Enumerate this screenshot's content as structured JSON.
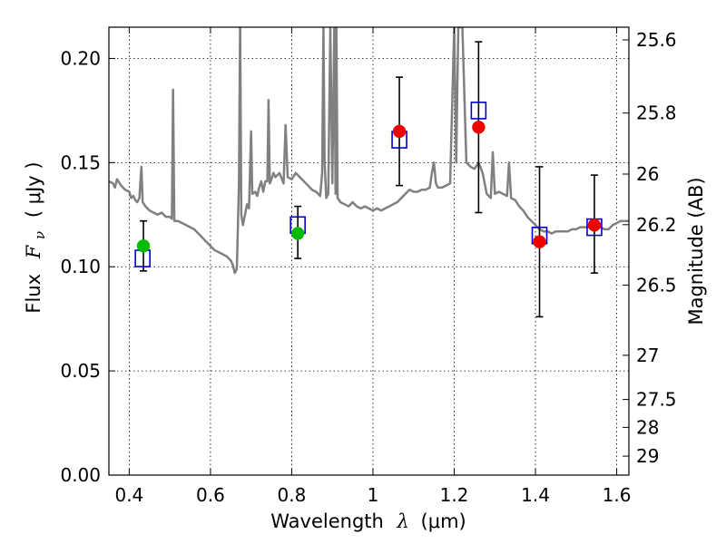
{
  "chart_data": {
    "type": "scatter",
    "xlabel": "Wavelength",
    "xlabel_symbol": "λ",
    "xlabel_unit": "(μm)",
    "ylabel": "Flux",
    "ylabel_symbol": "F",
    "ylabel_symbol_sub": "ν",
    "ylabel_unit": "( μJy )",
    "y2label": "Magnitude (AB)",
    "xlim": [
      0.35,
      1.63
    ],
    "ylim": [
      0.0,
      0.215
    ],
    "grid": true,
    "grid_style": "dotted",
    "x_ticks": [
      0.4,
      0.6,
      0.8,
      1.0,
      1.2,
      1.4,
      1.6
    ],
    "x_tick_labels": [
      "0.4",
      "0.6",
      "0.8",
      "1",
      "1.2",
      "1.4",
      "1.6"
    ],
    "y_ticks": [
      0.0,
      0.05,
      0.1,
      0.15,
      0.2
    ],
    "y_tick_labels": [
      "0.00",
      "0.05",
      "0.10",
      "0.15",
      "0.20"
    ],
    "y2_ticks": [
      {
        "flux": 0.2089,
        "label": "25.6"
      },
      {
        "flux": 0.1738,
        "label": "25.8"
      },
      {
        "flux": 0.1445,
        "label": "26"
      },
      {
        "flux": 0.1202,
        "label": "26.2"
      },
      {
        "flux": 0.0912,
        "label": "26.5"
      },
      {
        "flux": 0.0575,
        "label": "27"
      },
      {
        "flux": 0.0363,
        "label": "27.5"
      },
      {
        "flux": 0.0229,
        "label": "28"
      },
      {
        "flux": 0.0091,
        "label": "29"
      }
    ],
    "series": [
      {
        "kind": "line",
        "color": "#808080",
        "points": [
          [
            0.35,
            0.141
          ],
          [
            0.36,
            0.14
          ],
          [
            0.365,
            0.138
          ],
          [
            0.37,
            0.142
          ],
          [
            0.38,
            0.139
          ],
          [
            0.39,
            0.137
          ],
          [
            0.4,
            0.136
          ],
          [
            0.405,
            0.133
          ],
          [
            0.41,
            0.134
          ],
          [
            0.415,
            0.132
          ],
          [
            0.42,
            0.131
          ],
          [
            0.425,
            0.133
          ],
          [
            0.43,
            0.148
          ],
          [
            0.433,
            0.131
          ],
          [
            0.44,
            0.129
          ],
          [
            0.45,
            0.127
          ],
          [
            0.46,
            0.126
          ],
          [
            0.47,
            0.125
          ],
          [
            0.48,
            0.126
          ],
          [
            0.49,
            0.124
          ],
          [
            0.5,
            0.124
          ],
          [
            0.505,
            0.123
          ],
          [
            0.508,
            0.185
          ],
          [
            0.511,
            0.122
          ],
          [
            0.52,
            0.122
          ],
          [
            0.53,
            0.121
          ],
          [
            0.54,
            0.12
          ],
          [
            0.55,
            0.119
          ],
          [
            0.56,
            0.118
          ],
          [
            0.57,
            0.116
          ],
          [
            0.58,
            0.114
          ],
          [
            0.59,
            0.112
          ],
          [
            0.6,
            0.11
          ],
          [
            0.61,
            0.108
          ],
          [
            0.62,
            0.107
          ],
          [
            0.63,
            0.106
          ],
          [
            0.64,
            0.105
          ],
          [
            0.65,
            0.103
          ],
          [
            0.655,
            0.101
          ],
          [
            0.66,
            0.097
          ],
          [
            0.665,
            0.099
          ],
          [
            0.67,
            0.14
          ],
          [
            0.673,
            0.22
          ],
          [
            0.676,
            0.125
          ],
          [
            0.68,
            0.12
          ],
          [
            0.685,
            0.125
          ],
          [
            0.69,
            0.13
          ],
          [
            0.695,
            0.128
          ],
          [
            0.7,
            0.165
          ],
          [
            0.703,
            0.135
          ],
          [
            0.71,
            0.136
          ],
          [
            0.715,
            0.134
          ],
          [
            0.72,
            0.138
          ],
          [
            0.725,
            0.141
          ],
          [
            0.73,
            0.136
          ],
          [
            0.735,
            0.141
          ],
          [
            0.74,
            0.141
          ],
          [
            0.743,
            0.18
          ],
          [
            0.746,
            0.14
          ],
          [
            0.75,
            0.142
          ],
          [
            0.755,
            0.145
          ],
          [
            0.76,
            0.143
          ],
          [
            0.77,
            0.145
          ],
          [
            0.78,
            0.14
          ],
          [
            0.785,
            0.168
          ],
          [
            0.79,
            0.143
          ],
          [
            0.8,
            0.142
          ],
          [
            0.81,
            0.145
          ],
          [
            0.82,
            0.143
          ],
          [
            0.83,
            0.141
          ],
          [
            0.84,
            0.139
          ],
          [
            0.85,
            0.137
          ],
          [
            0.86,
            0.136
          ],
          [
            0.87,
            0.134
          ],
          [
            0.875,
            0.145
          ],
          [
            0.878,
            0.215
          ],
          [
            0.881,
            0.15
          ],
          [
            0.885,
            0.133
          ],
          [
            0.89,
            0.135
          ],
          [
            0.895,
            0.215
          ],
          [
            0.9,
            0.14
          ],
          [
            0.905,
            0.215
          ],
          [
            0.908,
            0.135
          ],
          [
            0.91,
            0.215
          ],
          [
            0.913,
            0.133
          ],
          [
            0.92,
            0.131
          ],
          [
            0.93,
            0.13
          ],
          [
            0.94,
            0.129
          ],
          [
            0.95,
            0.131
          ],
          [
            0.96,
            0.129
          ],
          [
            0.97,
            0.128
          ],
          [
            0.98,
            0.129
          ],
          [
            0.99,
            0.128
          ],
          [
            1.0,
            0.127
          ],
          [
            1.01,
            0.128
          ],
          [
            1.02,
            0.127
          ],
          [
            1.03,
            0.128
          ],
          [
            1.04,
            0.129
          ],
          [
            1.05,
            0.13
          ],
          [
            1.06,
            0.131
          ],
          [
            1.07,
            0.133
          ],
          [
            1.08,
            0.135
          ],
          [
            1.09,
            0.137
          ],
          [
            1.1,
            0.136
          ],
          [
            1.11,
            0.136
          ],
          [
            1.12,
            0.137
          ],
          [
            1.13,
            0.137
          ],
          [
            1.14,
            0.138
          ],
          [
            1.145,
            0.145
          ],
          [
            1.15,
            0.15
          ],
          [
            1.155,
            0.14
          ],
          [
            1.16,
            0.138
          ],
          [
            1.17,
            0.138
          ],
          [
            1.18,
            0.139
          ],
          [
            1.19,
            0.14
          ],
          [
            1.2,
            0.215
          ],
          [
            1.205,
            0.15
          ],
          [
            1.21,
            0.215
          ],
          [
            1.22,
            0.215
          ],
          [
            1.23,
            0.15
          ],
          [
            1.24,
            0.148
          ],
          [
            1.25,
            0.147
          ],
          [
            1.26,
            0.15
          ],
          [
            1.27,
            0.145
          ],
          [
            1.28,
            0.135
          ],
          [
            1.29,
            0.133
          ],
          [
            1.295,
            0.155
          ],
          [
            1.3,
            0.135
          ],
          [
            1.31,
            0.136
          ],
          [
            1.32,
            0.135
          ],
          [
            1.33,
            0.134
          ],
          [
            1.335,
            0.15
          ],
          [
            1.34,
            0.133
          ],
          [
            1.35,
            0.132
          ],
          [
            1.36,
            0.129
          ],
          [
            1.37,
            0.127
          ],
          [
            1.38,
            0.124
          ],
          [
            1.39,
            0.122
          ],
          [
            1.4,
            0.12
          ],
          [
            1.41,
            0.118
          ],
          [
            1.42,
            0.117
          ],
          [
            1.43,
            0.117
          ],
          [
            1.44,
            0.116
          ],
          [
            1.45,
            0.117
          ],
          [
            1.46,
            0.117
          ],
          [
            1.47,
            0.117
          ],
          [
            1.48,
            0.117
          ],
          [
            1.49,
            0.118
          ],
          [
            1.5,
            0.118
          ],
          [
            1.51,
            0.119
          ],
          [
            1.52,
            0.119
          ],
          [
            1.53,
            0.119
          ],
          [
            1.54,
            0.119
          ],
          [
            1.55,
            0.119
          ],
          [
            1.56,
            0.119
          ],
          [
            1.57,
            0.118
          ],
          [
            1.58,
            0.118
          ],
          [
            1.59,
            0.12
          ],
          [
            1.6,
            0.121
          ],
          [
            1.61,
            0.122
          ],
          [
            1.62,
            0.122
          ],
          [
            1.63,
            0.122
          ]
        ]
      },
      {
        "kind": "squares",
        "color": "#0000cc",
        "points": [
          [
            0.433,
            0.104
          ],
          [
            0.815,
            0.12
          ],
          [
            1.065,
            0.161
          ],
          [
            1.26,
            0.175
          ],
          [
            1.41,
            0.115
          ],
          [
            1.545,
            0.119
          ]
        ]
      },
      {
        "kind": "circles",
        "color": "#00bb00",
        "points": [
          [
            0.435,
            0.11
          ],
          [
            0.815,
            0.116
          ]
        ]
      },
      {
        "kind": "circles",
        "color": "#ee0000",
        "points": [
          [
            1.065,
            0.165
          ],
          [
            1.26,
            0.167
          ],
          [
            1.41,
            0.112
          ],
          [
            1.545,
            0.12
          ]
        ]
      },
      {
        "kind": "errorbars",
        "color": "#000000",
        "points": [
          {
            "x": 0.435,
            "lo": 0.098,
            "hi": 0.122
          },
          {
            "x": 0.815,
            "lo": 0.104,
            "hi": 0.129
          },
          {
            "x": 1.065,
            "lo": 0.139,
            "hi": 0.191
          },
          {
            "x": 1.26,
            "lo": 0.126,
            "hi": 0.208
          },
          {
            "x": 1.41,
            "lo": 0.076,
            "hi": 0.148
          },
          {
            "x": 1.545,
            "lo": 0.097,
            "hi": 0.144
          }
        ]
      }
    ]
  }
}
